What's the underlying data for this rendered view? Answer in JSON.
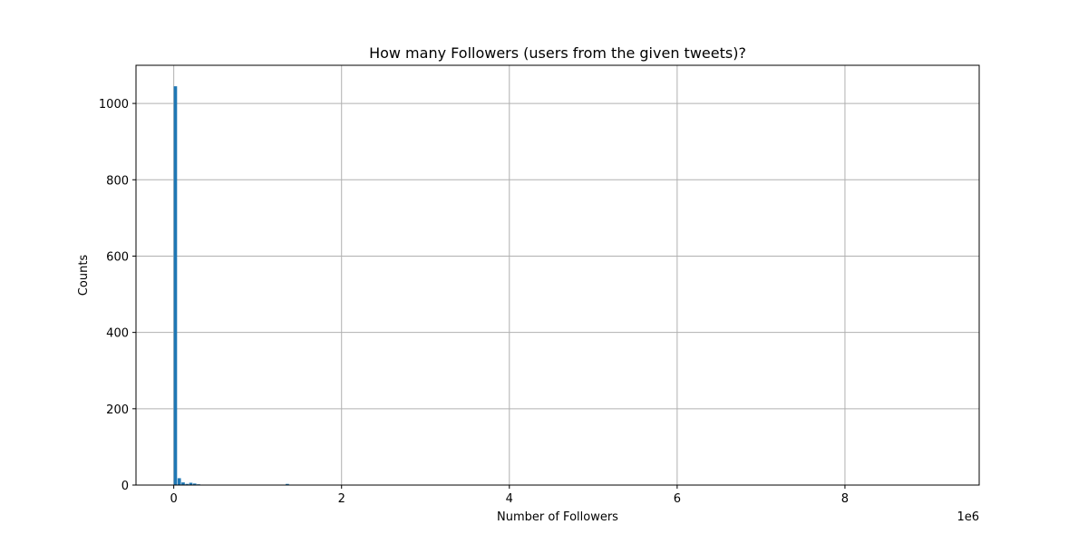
{
  "chart_data": {
    "type": "bar",
    "title": "How many Followers (users from the given tweets)?",
    "xlabel": "Number of Followers",
    "ylabel": "Counts",
    "x_offset_label": "1e6",
    "xlim": [
      -0.45,
      9.6
    ],
    "ylim": [
      0,
      1100
    ],
    "x_ticks": [
      0,
      2,
      4,
      6,
      8
    ],
    "x_tick_labels": [
      "0",
      "2",
      "4",
      "6",
      "8"
    ],
    "y_ticks": [
      0,
      200,
      400,
      600,
      800,
      1000
    ],
    "y_tick_labels": [
      "0",
      "200",
      "400",
      "600",
      "800",
      "1000"
    ],
    "grid": true,
    "bar_color": "#1f77b4",
    "bin_width": 0.046,
    "bins": [
      {
        "x": 0.0,
        "count": 1045
      },
      {
        "x": 0.046,
        "count": 18
      },
      {
        "x": 0.092,
        "count": 7
      },
      {
        "x": 0.138,
        "count": 3
      },
      {
        "x": 0.184,
        "count": 6
      },
      {
        "x": 0.23,
        "count": 4
      },
      {
        "x": 0.276,
        "count": 2
      },
      {
        "x": 0.322,
        "count": 1
      },
      {
        "x": 1.334,
        "count": 3
      }
    ]
  }
}
